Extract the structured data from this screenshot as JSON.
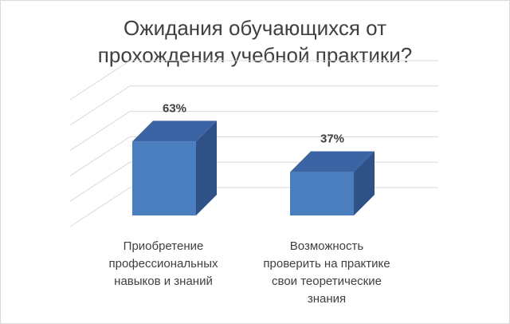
{
  "chart_data": {
    "type": "bar",
    "title": "Ожидания обучающихся от\nпрохождения учебной практики?",
    "categories": [
      "Приобретение\nпрофессиональных\nнавыков и знаний",
      "Возможность\nпроверить на практике\nсвои теоретические\nзнания"
    ],
    "values": [
      63,
      37
    ],
    "data_labels": [
      "63%",
      "37%"
    ],
    "value_unit": "%",
    "ylim": [
      0,
      100
    ],
    "grid": true,
    "legend": "none",
    "style": "3d-column",
    "colors": {
      "bar_front": "#4a7ebf",
      "bar_side": "#2f5286",
      "bar_top": "#3a64a4",
      "grid": "#d9d9d9",
      "text": "#404040"
    }
  }
}
